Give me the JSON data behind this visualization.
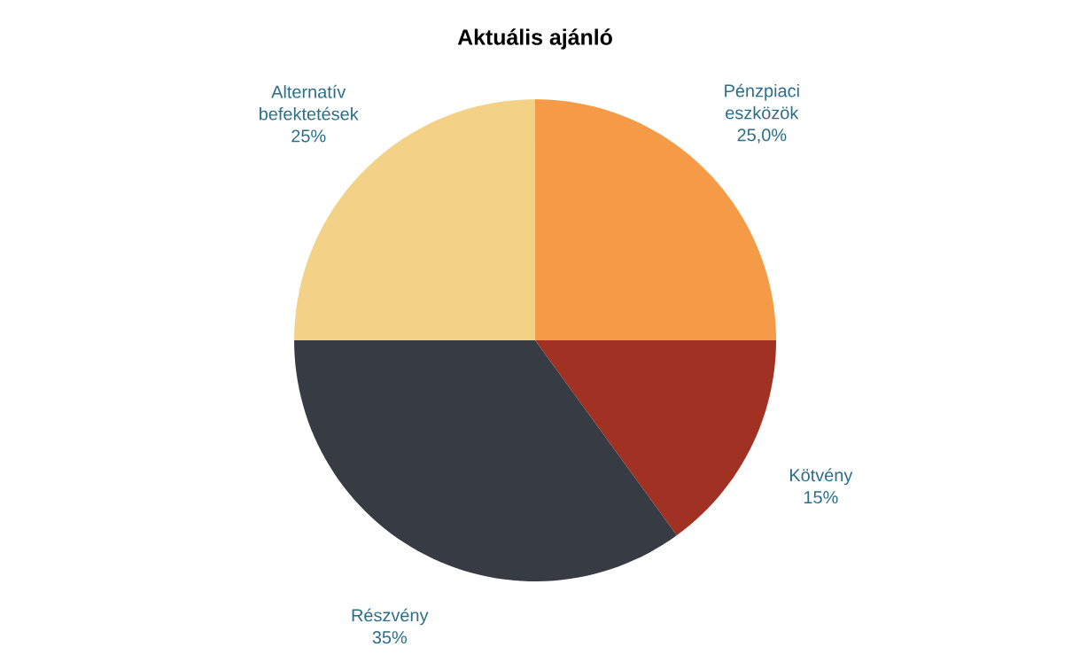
{
  "chart_data": {
    "type": "pie",
    "title": "Aktuális ajánló",
    "categories": [
      "Pénzpiaci eszközök",
      "Kötvény",
      "Részvény",
      "Alternatív befektetések"
    ],
    "values": [
      25,
      15,
      35,
      25
    ],
    "value_labels": [
      "25,0%",
      "15%",
      "35%",
      "25%"
    ],
    "colors": [
      "#f59b47",
      "#a03123",
      "#373b44",
      "#f3d287"
    ]
  }
}
